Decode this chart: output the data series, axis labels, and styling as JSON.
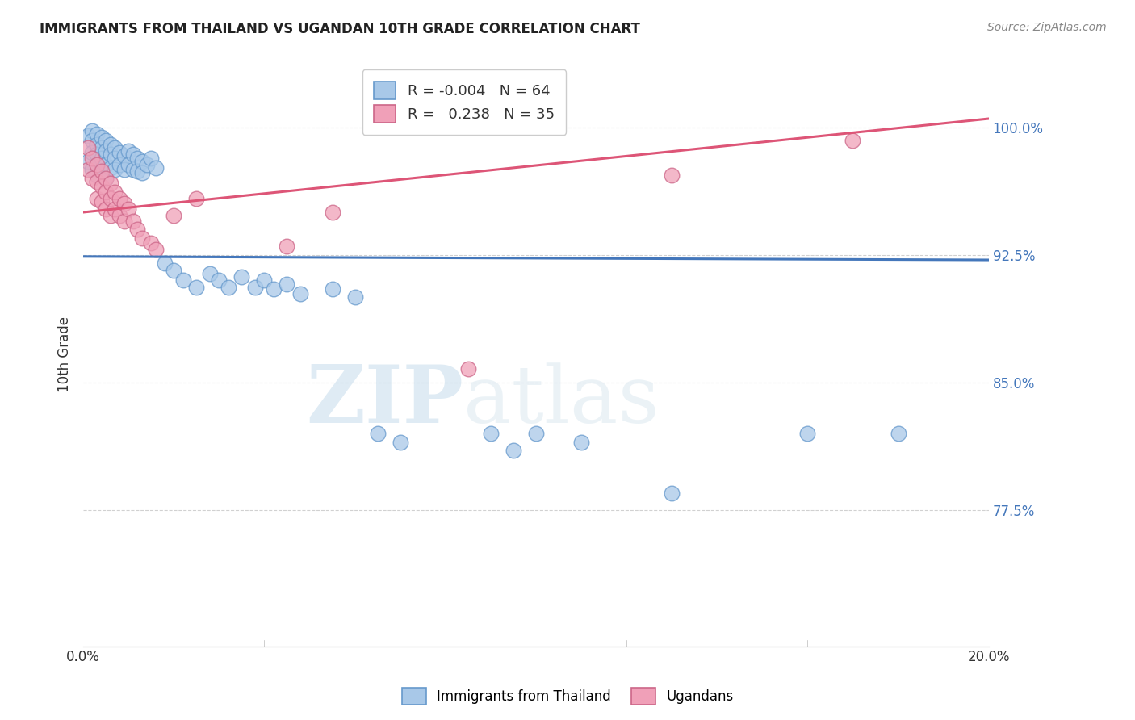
{
  "title": "IMMIGRANTS FROM THAILAND VS UGANDAN 10TH GRADE CORRELATION CHART",
  "source": "Source: ZipAtlas.com",
  "ylabel": "10th Grade",
  "ytick_labels": [
    "77.5%",
    "85.0%",
    "92.5%",
    "100.0%"
  ],
  "ytick_values": [
    0.775,
    0.85,
    0.925,
    1.0
  ],
  "xlim": [
    0.0,
    0.2
  ],
  "ylim": [
    0.695,
    1.038
  ],
  "blue_fill": "#A8C8E8",
  "blue_edge": "#6699CC",
  "pink_fill": "#F0A0B8",
  "pink_edge": "#CC6688",
  "blue_line_color": "#4477BB",
  "pink_line_color": "#DD5577",
  "legend_R_blue": "-0.004",
  "legend_N_blue": "64",
  "legend_R_pink": "0.238",
  "legend_N_pink": "35",
  "blue_label": "Immigrants from Thailand",
  "pink_label": "Ugandans",
  "watermark_zip": "ZIP",
  "watermark_atlas": "atlas",
  "blue_trend_y0": 0.924,
  "blue_trend_y1": 0.922,
  "pink_trend_y0": 0.95,
  "pink_trend_y1": 1.005,
  "blue_x": [
    0.001,
    0.001,
    0.002,
    0.002,
    0.002,
    0.002,
    0.003,
    0.003,
    0.003,
    0.003,
    0.003,
    0.004,
    0.004,
    0.004,
    0.004,
    0.005,
    0.005,
    0.005,
    0.005,
    0.006,
    0.006,
    0.006,
    0.007,
    0.007,
    0.007,
    0.008,
    0.008,
    0.009,
    0.009,
    0.01,
    0.01,
    0.011,
    0.011,
    0.012,
    0.012,
    0.013,
    0.013,
    0.014,
    0.015,
    0.016,
    0.018,
    0.02,
    0.022,
    0.025,
    0.028,
    0.03,
    0.032,
    0.035,
    0.038,
    0.04,
    0.042,
    0.045,
    0.048,
    0.055,
    0.06,
    0.065,
    0.07,
    0.09,
    0.095,
    0.1,
    0.11,
    0.13,
    0.16,
    0.18
  ],
  "blue_y": [
    0.995,
    0.98,
    0.998,
    0.992,
    0.985,
    0.975,
    0.996,
    0.99,
    0.984,
    0.978,
    0.972,
    0.994,
    0.988,
    0.982,
    0.974,
    0.992,
    0.986,
    0.978,
    0.97,
    0.99,
    0.984,
    0.976,
    0.988,
    0.982,
    0.975,
    0.985,
    0.978,
    0.983,
    0.975,
    0.986,
    0.978,
    0.984,
    0.975,
    0.982,
    0.974,
    0.98,
    0.973,
    0.978,
    0.982,
    0.976,
    0.92,
    0.916,
    0.91,
    0.906,
    0.914,
    0.91,
    0.906,
    0.912,
    0.906,
    0.91,
    0.905,
    0.908,
    0.902,
    0.905,
    0.9,
    0.82,
    0.815,
    0.82,
    0.81,
    0.82,
    0.815,
    0.785,
    0.82,
    0.82
  ],
  "pink_x": [
    0.001,
    0.001,
    0.002,
    0.002,
    0.003,
    0.003,
    0.003,
    0.004,
    0.004,
    0.004,
    0.005,
    0.005,
    0.005,
    0.006,
    0.006,
    0.006,
    0.007,
    0.007,
    0.008,
    0.008,
    0.009,
    0.009,
    0.01,
    0.011,
    0.012,
    0.013,
    0.015,
    0.016,
    0.02,
    0.025,
    0.045,
    0.055,
    0.085,
    0.13,
    0.17
  ],
  "pink_y": [
    0.988,
    0.975,
    0.982,
    0.97,
    0.978,
    0.968,
    0.958,
    0.974,
    0.965,
    0.956,
    0.97,
    0.962,
    0.952,
    0.967,
    0.958,
    0.948,
    0.962,
    0.952,
    0.958,
    0.948,
    0.955,
    0.945,
    0.952,
    0.945,
    0.94,
    0.935,
    0.932,
    0.928,
    0.948,
    0.958,
    0.93,
    0.95,
    0.858,
    0.972,
    0.992
  ]
}
